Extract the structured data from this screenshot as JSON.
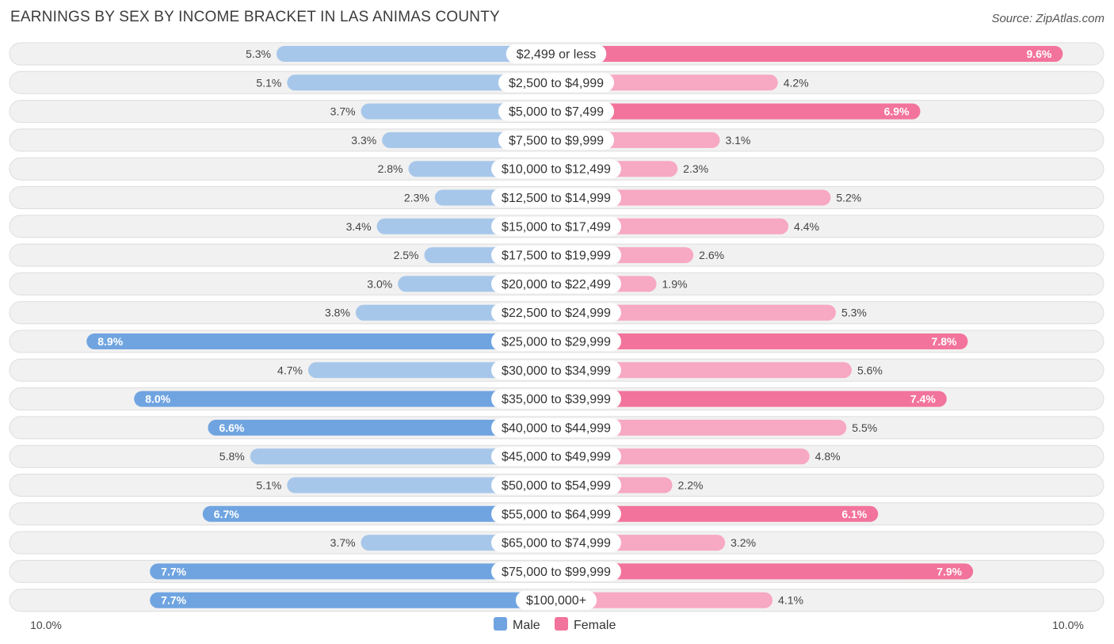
{
  "title": "EARNINGS BY SEX BY INCOME BRACKET IN LAS ANIMAS COUNTY",
  "source": "Source: ZipAtlas.com",
  "colors": {
    "male": "#6fa4e0",
    "male_light": "#a7c7ea",
    "female": "#f2739b",
    "female_light": "#f7a8c2"
  },
  "chart_data": {
    "type": "bar",
    "orientation": "horizontal-diverging",
    "title": "EARNINGS BY SEX BY INCOME BRACKET IN LAS ANIMAS COUNTY",
    "categories": [
      "$2,499 or less",
      "$2,500 to $4,999",
      "$5,000 to $7,499",
      "$7,500 to $9,999",
      "$10,000 to $12,499",
      "$12,500 to $14,999",
      "$15,000 to $17,499",
      "$17,500 to $19,999",
      "$20,000 to $22,499",
      "$22,500 to $24,999",
      "$25,000 to $29,999",
      "$30,000 to $34,999",
      "$35,000 to $39,999",
      "$40,000 to $44,999",
      "$45,000 to $49,999",
      "$50,000 to $54,999",
      "$55,000 to $64,999",
      "$65,000 to $74,999",
      "$75,000 to $99,999",
      "$100,000+"
    ],
    "series": [
      {
        "name": "Male",
        "values": [
          5.3,
          5.1,
          3.7,
          3.3,
          2.8,
          2.3,
          3.4,
          2.5,
          3.0,
          3.8,
          8.9,
          4.7,
          8.0,
          6.6,
          5.8,
          5.1,
          6.7,
          3.7,
          7.7,
          7.7
        ],
        "labels": [
          "5.3%",
          "5.1%",
          "3.7%",
          "3.3%",
          "2.8%",
          "2.3%",
          "3.4%",
          "2.5%",
          "3.0%",
          "3.8%",
          "8.9%",
          "4.7%",
          "8.0%",
          "6.6%",
          "5.8%",
          "5.1%",
          "6.7%",
          "3.7%",
          "7.7%",
          "7.7%"
        ]
      },
      {
        "name": "Female",
        "values": [
          9.6,
          4.2,
          6.9,
          3.1,
          2.3,
          5.2,
          4.4,
          2.6,
          1.9,
          5.3,
          7.8,
          5.6,
          7.4,
          5.5,
          4.8,
          2.2,
          6.1,
          3.2,
          7.9,
          4.1
        ],
        "labels": [
          "9.6%",
          "4.2%",
          "6.9%",
          "3.1%",
          "2.3%",
          "5.2%",
          "4.4%",
          "2.6%",
          "1.9%",
          "5.3%",
          "7.8%",
          "5.6%",
          "7.4%",
          "5.5%",
          "4.8%",
          "2.2%",
          "6.1%",
          "3.2%",
          "7.9%",
          "4.1%"
        ]
      }
    ],
    "xlim": [
      0,
      10
    ],
    "axis_labels": {
      "left": "10.0%",
      "right": "10.0%"
    },
    "legend": {
      "position": "bottom-center",
      "items": [
        "Male",
        "Female"
      ]
    }
  }
}
